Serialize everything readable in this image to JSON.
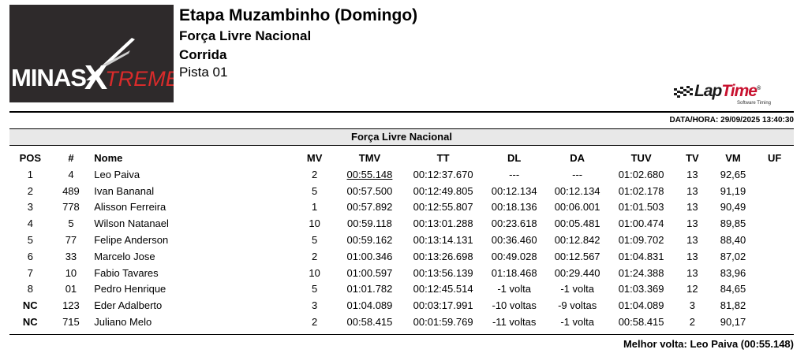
{
  "header": {
    "title": "Etapa Muzambinho (Domingo)",
    "category": "Força Livre Nacional",
    "session": "Corrida",
    "track": "Pista 01"
  },
  "logo": {
    "part1": "MINAS",
    "part2": "X",
    "part3": "TREME"
  },
  "timing_brand": {
    "lap": "Lap",
    "time": "Time",
    "reg": "®",
    "tagline": "Software Timing"
  },
  "datetime": "DATA/HORA: 29/09/2025 13:40:30",
  "section_title": "Força Livre Nacional",
  "columns": [
    "POS",
    "#",
    "Nome",
    "MV",
    "TMV",
    "TT",
    "DL",
    "DA",
    "TUV",
    "TV",
    "VM",
    "UF"
  ],
  "rows": [
    {
      "pos": "1",
      "num": "4",
      "name": "Leo Paiva",
      "mv": "2",
      "tmv": "00:55.148",
      "tt": "00:12:37.670",
      "dl": "---",
      "da": "---",
      "tuv": "01:02.680",
      "tv": "13",
      "vm": "92,65",
      "uf": ""
    },
    {
      "pos": "2",
      "num": "489",
      "name": "Ivan Bananal",
      "mv": "5",
      "tmv": "00:57.500",
      "tt": "00:12:49.805",
      "dl": "00:12.134",
      "da": "00:12.134",
      "tuv": "01:02.178",
      "tv": "13",
      "vm": "91,19",
      "uf": ""
    },
    {
      "pos": "3",
      "num": "778",
      "name": "Alisson Ferreira",
      "mv": "1",
      "tmv": "00:57.892",
      "tt": "00:12:55.807",
      "dl": "00:18.136",
      "da": "00:06.001",
      "tuv": "01:01.503",
      "tv": "13",
      "vm": "90,49",
      "uf": ""
    },
    {
      "pos": "4",
      "num": "5",
      "name": "Wilson Natanael",
      "mv": "10",
      "tmv": "00:59.118",
      "tt": "00:13:01.288",
      "dl": "00:23.618",
      "da": "00:05.481",
      "tuv": "01:00.474",
      "tv": "13",
      "vm": "89,85",
      "uf": ""
    },
    {
      "pos": "5",
      "num": "77",
      "name": "Felipe Anderson",
      "mv": "5",
      "tmv": "00:59.162",
      "tt": "00:13:14.131",
      "dl": "00:36.460",
      "da": "00:12.842",
      "tuv": "01:09.702",
      "tv": "13",
      "vm": "88,40",
      "uf": ""
    },
    {
      "pos": "6",
      "num": "33",
      "name": "Marcelo Jose",
      "mv": "2",
      "tmv": "01:00.346",
      "tt": "00:13:26.698",
      "dl": "00:49.028",
      "da": "00:12.567",
      "tuv": "01:04.831",
      "tv": "13",
      "vm": "87,02",
      "uf": ""
    },
    {
      "pos": "7",
      "num": "10",
      "name": "Fabio Tavares",
      "mv": "10",
      "tmv": "01:00.597",
      "tt": "00:13:56.139",
      "dl": "01:18.468",
      "da": "00:29.440",
      "tuv": "01:24.388",
      "tv": "13",
      "vm": "83,96",
      "uf": ""
    },
    {
      "pos": "8",
      "num": "01",
      "name": "Pedro Henrique",
      "mv": "5",
      "tmv": "01:01.782",
      "tt": "00:12:45.514",
      "dl": "-1 volta",
      "da": "-1 volta",
      "tuv": "01:03.369",
      "tv": "12",
      "vm": "84,65",
      "uf": ""
    },
    {
      "pos": "NC",
      "num": "123",
      "name": "Eder Adalberto",
      "mv": "3",
      "tmv": "01:04.089",
      "tt": "00:03:17.991",
      "dl": "-10 voltas",
      "da": "-9 voltas",
      "tuv": "01:04.089",
      "tv": "3",
      "vm": "81,82",
      "uf": ""
    },
    {
      "pos": "NC",
      "num": "715",
      "name": "Juliano Melo",
      "mv": "2",
      "tmv": "00:58.415",
      "tt": "00:01:59.769",
      "dl": "-11 voltas",
      "da": "-1 volta",
      "tuv": "00:58.415",
      "tv": "2",
      "vm": "90,17",
      "uf": ""
    }
  ],
  "best_lap_row_index": 0,
  "best_lap": "Melhor volta: Leo Paiva (00:55.148)",
  "icons": {
    "checkered_flag": "checkered-flag-icon",
    "logo_swoosh": "swoosh-icon"
  }
}
